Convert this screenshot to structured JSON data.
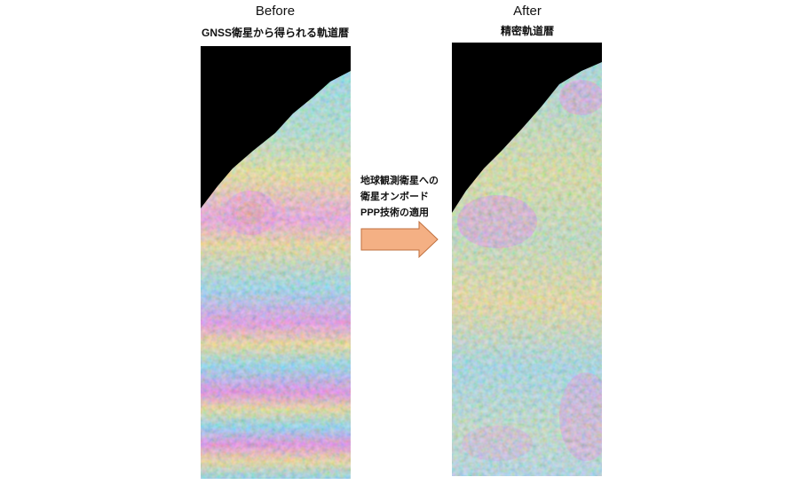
{
  "before": {
    "title": "Before",
    "subtitle": "GNSS衛星から得られる軌道暦"
  },
  "after": {
    "title": "After",
    "subtitle": "精密軌道暦"
  },
  "arrow": {
    "lines": [
      "地球観測衛星への",
      "衛星オンボード",
      "PPP技術の適用"
    ]
  }
}
